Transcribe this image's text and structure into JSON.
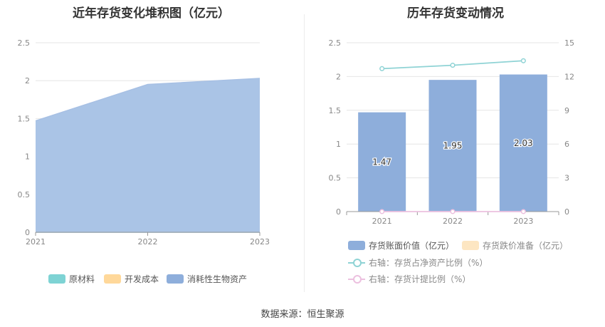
{
  "source": "数据来源：恒生聚源",
  "left_chart": {
    "title": "近年存货变化堆积图（亿元）",
    "chart_data": {
      "type": "area",
      "x": [
        "2021",
        "2022",
        "2023"
      ],
      "y_ticks": [
        "0",
        "0.5",
        "1",
        "1.5",
        "2",
        "2.5"
      ],
      "ylim": [
        0,
        2.5
      ],
      "series": [
        {
          "name": "原材料",
          "values": [
            0.0,
            0.0,
            0.0
          ],
          "color": "#7ed3d4"
        },
        {
          "name": "开发成本",
          "values": [
            0.0,
            0.0,
            0.0
          ],
          "color": "#ffd89a"
        },
        {
          "name": "消耗性生物资产",
          "values": [
            1.47,
            1.95,
            2.03
          ],
          "color": "#aac4e6"
        }
      ],
      "legend": "bottom"
    }
  },
  "right_chart": {
    "title": "历年存货变动情况",
    "chart_data": {
      "type": "bar",
      "categories": [
        "2021",
        "2022",
        "2023"
      ],
      "y_left_ticks": [
        "0",
        "0.5",
        "1",
        "1.5",
        "2",
        "2.5"
      ],
      "y_right_ticks": [
        "0",
        "3",
        "6",
        "9",
        "12",
        "15"
      ],
      "ylim_left": [
        0,
        2.5
      ],
      "ylim_right": [
        0,
        15
      ],
      "bars": {
        "name": "存货账面价值（亿元）",
        "values": [
          1.47,
          1.95,
          2.03
        ],
        "labels": [
          "1.47",
          "1.95",
          "2.03"
        ],
        "color": "#8eaedb"
      },
      "bars2": {
        "name": "存货跌价准备（亿元）",
        "values": [
          0,
          0,
          0
        ],
        "color": "#fde6c2"
      },
      "line1": {
        "name": "右轴：存货占净资产比例（%）",
        "values": [
          12.7,
          13.0,
          13.4
        ],
        "color": "#8fd3d5"
      },
      "line2": {
        "name": "右轴：存货计提比例（%）",
        "values": [
          0,
          0,
          0
        ],
        "color": "#ecc0df"
      },
      "legend": "bottom"
    }
  }
}
